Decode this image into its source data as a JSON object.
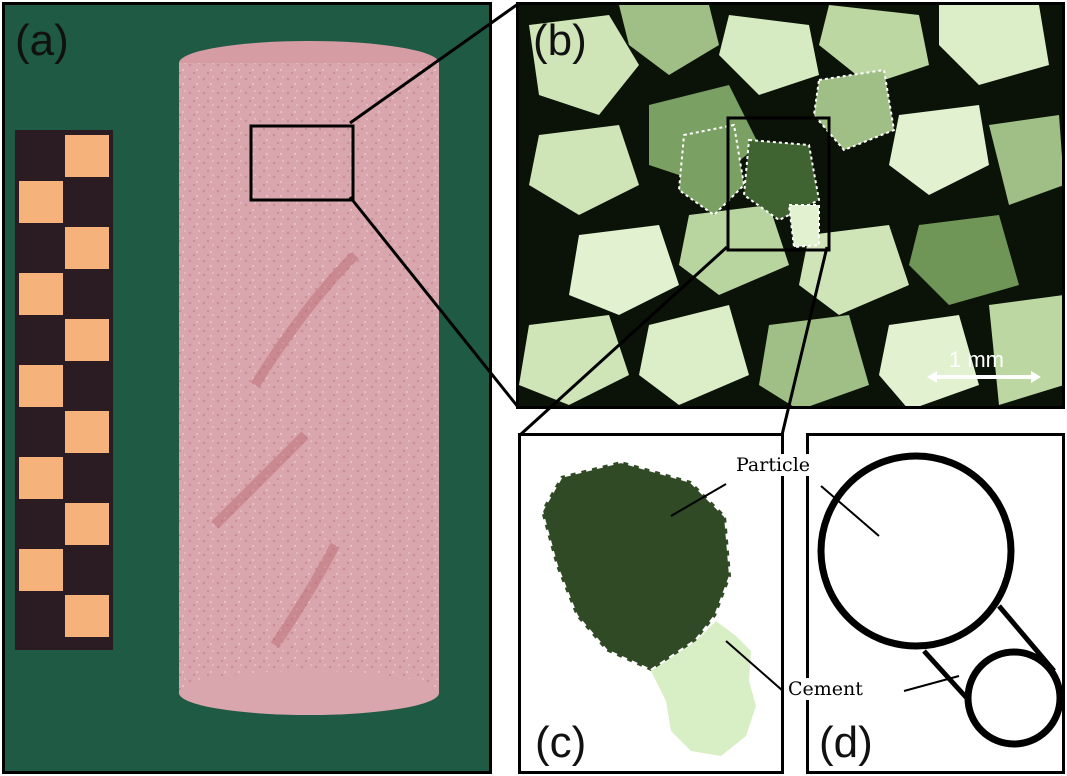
{
  "panels": {
    "a": {
      "label": "(a)"
    },
    "b": {
      "label": "(b)",
      "scale_bar": "1 mm"
    },
    "c": {
      "label": "(c)"
    },
    "d": {
      "label": "(d)"
    }
  },
  "annotations": {
    "particle": "Particle",
    "cement": "Cement"
  },
  "colors": {
    "background_cloth": "#1f5a45",
    "sandstone_core": "#d9a6ad",
    "ruler_dark": "#2a1c22",
    "ruler_light": "#f5b27a",
    "thin_section_dark": "#0b1208",
    "grain_light": "#cfe5b8",
    "grain_green": "#5b8a4e",
    "particle_green": "#2f4a25",
    "cement_light": "#d8efc6"
  }
}
